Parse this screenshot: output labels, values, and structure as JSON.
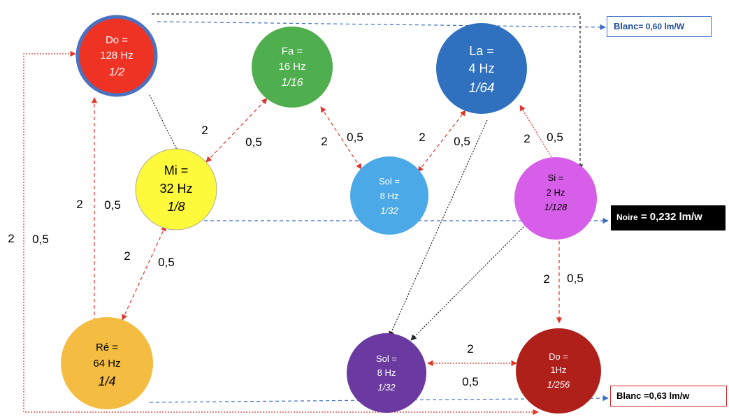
{
  "nodes": {
    "do_top": {
      "name": "Do =",
      "freq": "128 Hz",
      "frac": "1/2",
      "color": "#ee3224",
      "text_color": "#ffffff",
      "ring": "#4a72c0"
    },
    "fa": {
      "name": "Fa =",
      "freq": "16 Hz",
      "frac": "1/16",
      "color": "#4fae4e",
      "text_color": "#ffffff"
    },
    "la": {
      "name": "La =",
      "freq": "4 Hz",
      "frac": "1/64",
      "color": "#2f71bf",
      "text_color": "#ffffff"
    },
    "mi": {
      "name": "Mi =",
      "freq": "32 Hz",
      "frac": "1/8",
      "color": "#fdf93b",
      "text_color": "#000000"
    },
    "sol_top": {
      "name": "Sol =",
      "freq": "8 Hz",
      "frac": "1/32",
      "color": "#4aa9e6",
      "text_color": "#ffffff"
    },
    "si": {
      "name": "Si =",
      "freq": "2 Hz",
      "frac": "1/128",
      "color": "#d65ee8",
      "text_color": "#000000"
    },
    "re": {
      "name": "Ré =",
      "freq": "64 Hz",
      "frac": "1/4",
      "color": "#f4bd41",
      "text_color": "#000000"
    },
    "sol_bottom": {
      "name": "Sol =",
      "freq": "8 Hz",
      "frac": "1/32",
      "color": "#6a3aa0",
      "text_color": "#ffffff"
    },
    "do_bottom": {
      "name": "Do =",
      "freq": "1Hz",
      "frac": "1/256",
      "color": "#b0201b",
      "text_color": "#ffffff"
    }
  },
  "ratio_labels": {
    "do_mi_2": "2",
    "do_mi_05": "0,5",
    "mi_fa_2": "2",
    "mi_fa_05": "0,5",
    "fa_sol_2": "2",
    "fa_sol_05": "0,5",
    "sol_la_2": "2",
    "sol_la_05": "0,5",
    "la_si_2": "2",
    "la_si_05": "0,5",
    "do_re_2": "2",
    "do_re_05": "0,5",
    "outer_2": "2",
    "outer_05": "0,5",
    "mi_re_2": "2",
    "mi_re_05": "0,5",
    "si_do_2": "2",
    "si_do_05": "0,5",
    "sol_do_2": "2",
    "sol_do_05": "0,5"
  },
  "legends": {
    "blanc_top_word": "Blanc",
    "blanc_top_value": "= 0,60 lm/W",
    "noire_word": "Noire",
    "noire_value": " = 0,232 lm/w",
    "blanc_bottom": "Blanc =0,63 lm/w"
  },
  "colors": {
    "red_arrow": "#e0352b",
    "blue_arrow": "#3b6fc4",
    "black_arrow": "#222222"
  }
}
